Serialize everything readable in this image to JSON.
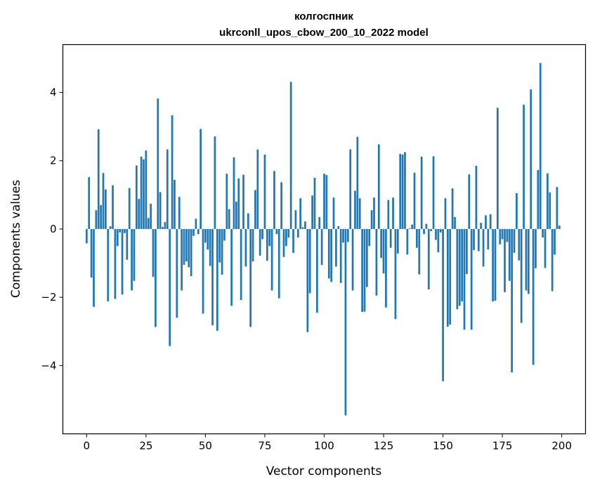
{
  "chart_data": {
    "type": "bar",
    "title": "колгоспник",
    "subtitle": "ukrconll_upos_cbow_200_10_2022 model",
    "xlabel": "Vector components",
    "ylabel": "Components values",
    "xlim": [
      -10,
      210
    ],
    "ylim": [
      -6.0,
      5.4
    ],
    "xticks": [
      0,
      25,
      50,
      75,
      100,
      125,
      150,
      175,
      200
    ],
    "yticks": [
      -4,
      -2,
      0,
      2,
      4
    ],
    "xtick_labels": [
      "0",
      "25",
      "50",
      "75",
      "100",
      "125",
      "150",
      "175",
      "200"
    ],
    "ytick_labels": [
      "−4",
      "−2",
      "0",
      "2",
      "4"
    ],
    "bar_color": "#1f77b4",
    "grid": false,
    "values": [
      -0.42,
      1.52,
      -1.42,
      -2.28,
      0.55,
      2.92,
      0.7,
      1.64,
      1.16,
      -2.12,
      0.08,
      1.28,
      -2.05,
      -0.5,
      -0.1,
      -1.92,
      -0.12,
      -0.9,
      1.2,
      -1.8,
      -1.52,
      1.86,
      0.88,
      2.12,
      2.04,
      2.3,
      0.32,
      0.74,
      -1.4,
      -2.87,
      3.82,
      1.08,
      0.06,
      0.2,
      2.33,
      -3.43,
      3.33,
      1.44,
      -2.6,
      0.94,
      -1.8,
      -1.05,
      -0.95,
      -1.12,
      -1.38,
      -0.2,
      0.3,
      -0.15,
      2.93,
      -2.48,
      -0.4,
      -0.6,
      -1.08,
      -2.82,
      2.71,
      -2.98,
      -0.98,
      -1.34,
      -0.34,
      1.62,
      0.58,
      -2.25,
      2.1,
      0.8,
      1.48,
      -2.08,
      1.59,
      -1.1,
      0.46,
      -2.87,
      -0.95,
      1.14,
      2.33,
      -0.78,
      -0.3,
      2.18,
      -0.93,
      -0.5,
      -1.8,
      1.7,
      -0.15,
      -2.03,
      1.37,
      -0.82,
      -0.5,
      -0.25,
      4.31,
      -0.7,
      0.55,
      -0.25,
      0.9,
      0.05,
      0.22,
      -3.02,
      -1.88,
      0.98,
      1.5,
      -2.45,
      0.35,
      -1.05,
      1.62,
      1.58,
      -1.45,
      -1.55,
      0.92,
      -1.1,
      0.08,
      -1.58,
      -0.4,
      -5.46,
      -0.38,
      2.33,
      -1.8,
      1.12,
      2.7,
      0.9,
      -2.43,
      -2.42,
      -1.7,
      -0.5,
      0.55,
      0.92,
      -1.95,
      2.48,
      -0.85,
      -1.3,
      -2.3,
      0.85,
      -0.55,
      0.92,
      -2.64,
      -0.72,
      2.2,
      2.18,
      2.25,
      -0.75,
      0.02,
      0.13,
      1.65,
      -0.55,
      -1.33,
      2.12,
      -0.15,
      0.15,
      -1.77,
      -0.06,
      2.13,
      -0.32,
      -0.68,
      -0.1,
      -4.46,
      0.9,
      -2.86,
      -2.8,
      1.19,
      0.35,
      -2.35,
      -2.25,
      -2.12,
      -2.95,
      -1.32,
      1.6,
      -2.95,
      -0.62,
      1.85,
      -0.65,
      0.18,
      -1.1,
      0.4,
      -0.6,
      0.43,
      -2.12,
      -2.1,
      3.55,
      -0.45,
      -0.3,
      -1.85,
      -0.38,
      -1.52,
      -4.2,
      -0.7,
      1.05,
      -0.92,
      -2.75,
      3.64,
      -1.8,
      -1.9,
      4.09,
      -3.98,
      -1.15,
      1.73,
      4.86,
      -0.25,
      -1.14,
      1.63,
      1.07,
      -1.82,
      -0.75,
      1.23,
      0.1
    ]
  }
}
